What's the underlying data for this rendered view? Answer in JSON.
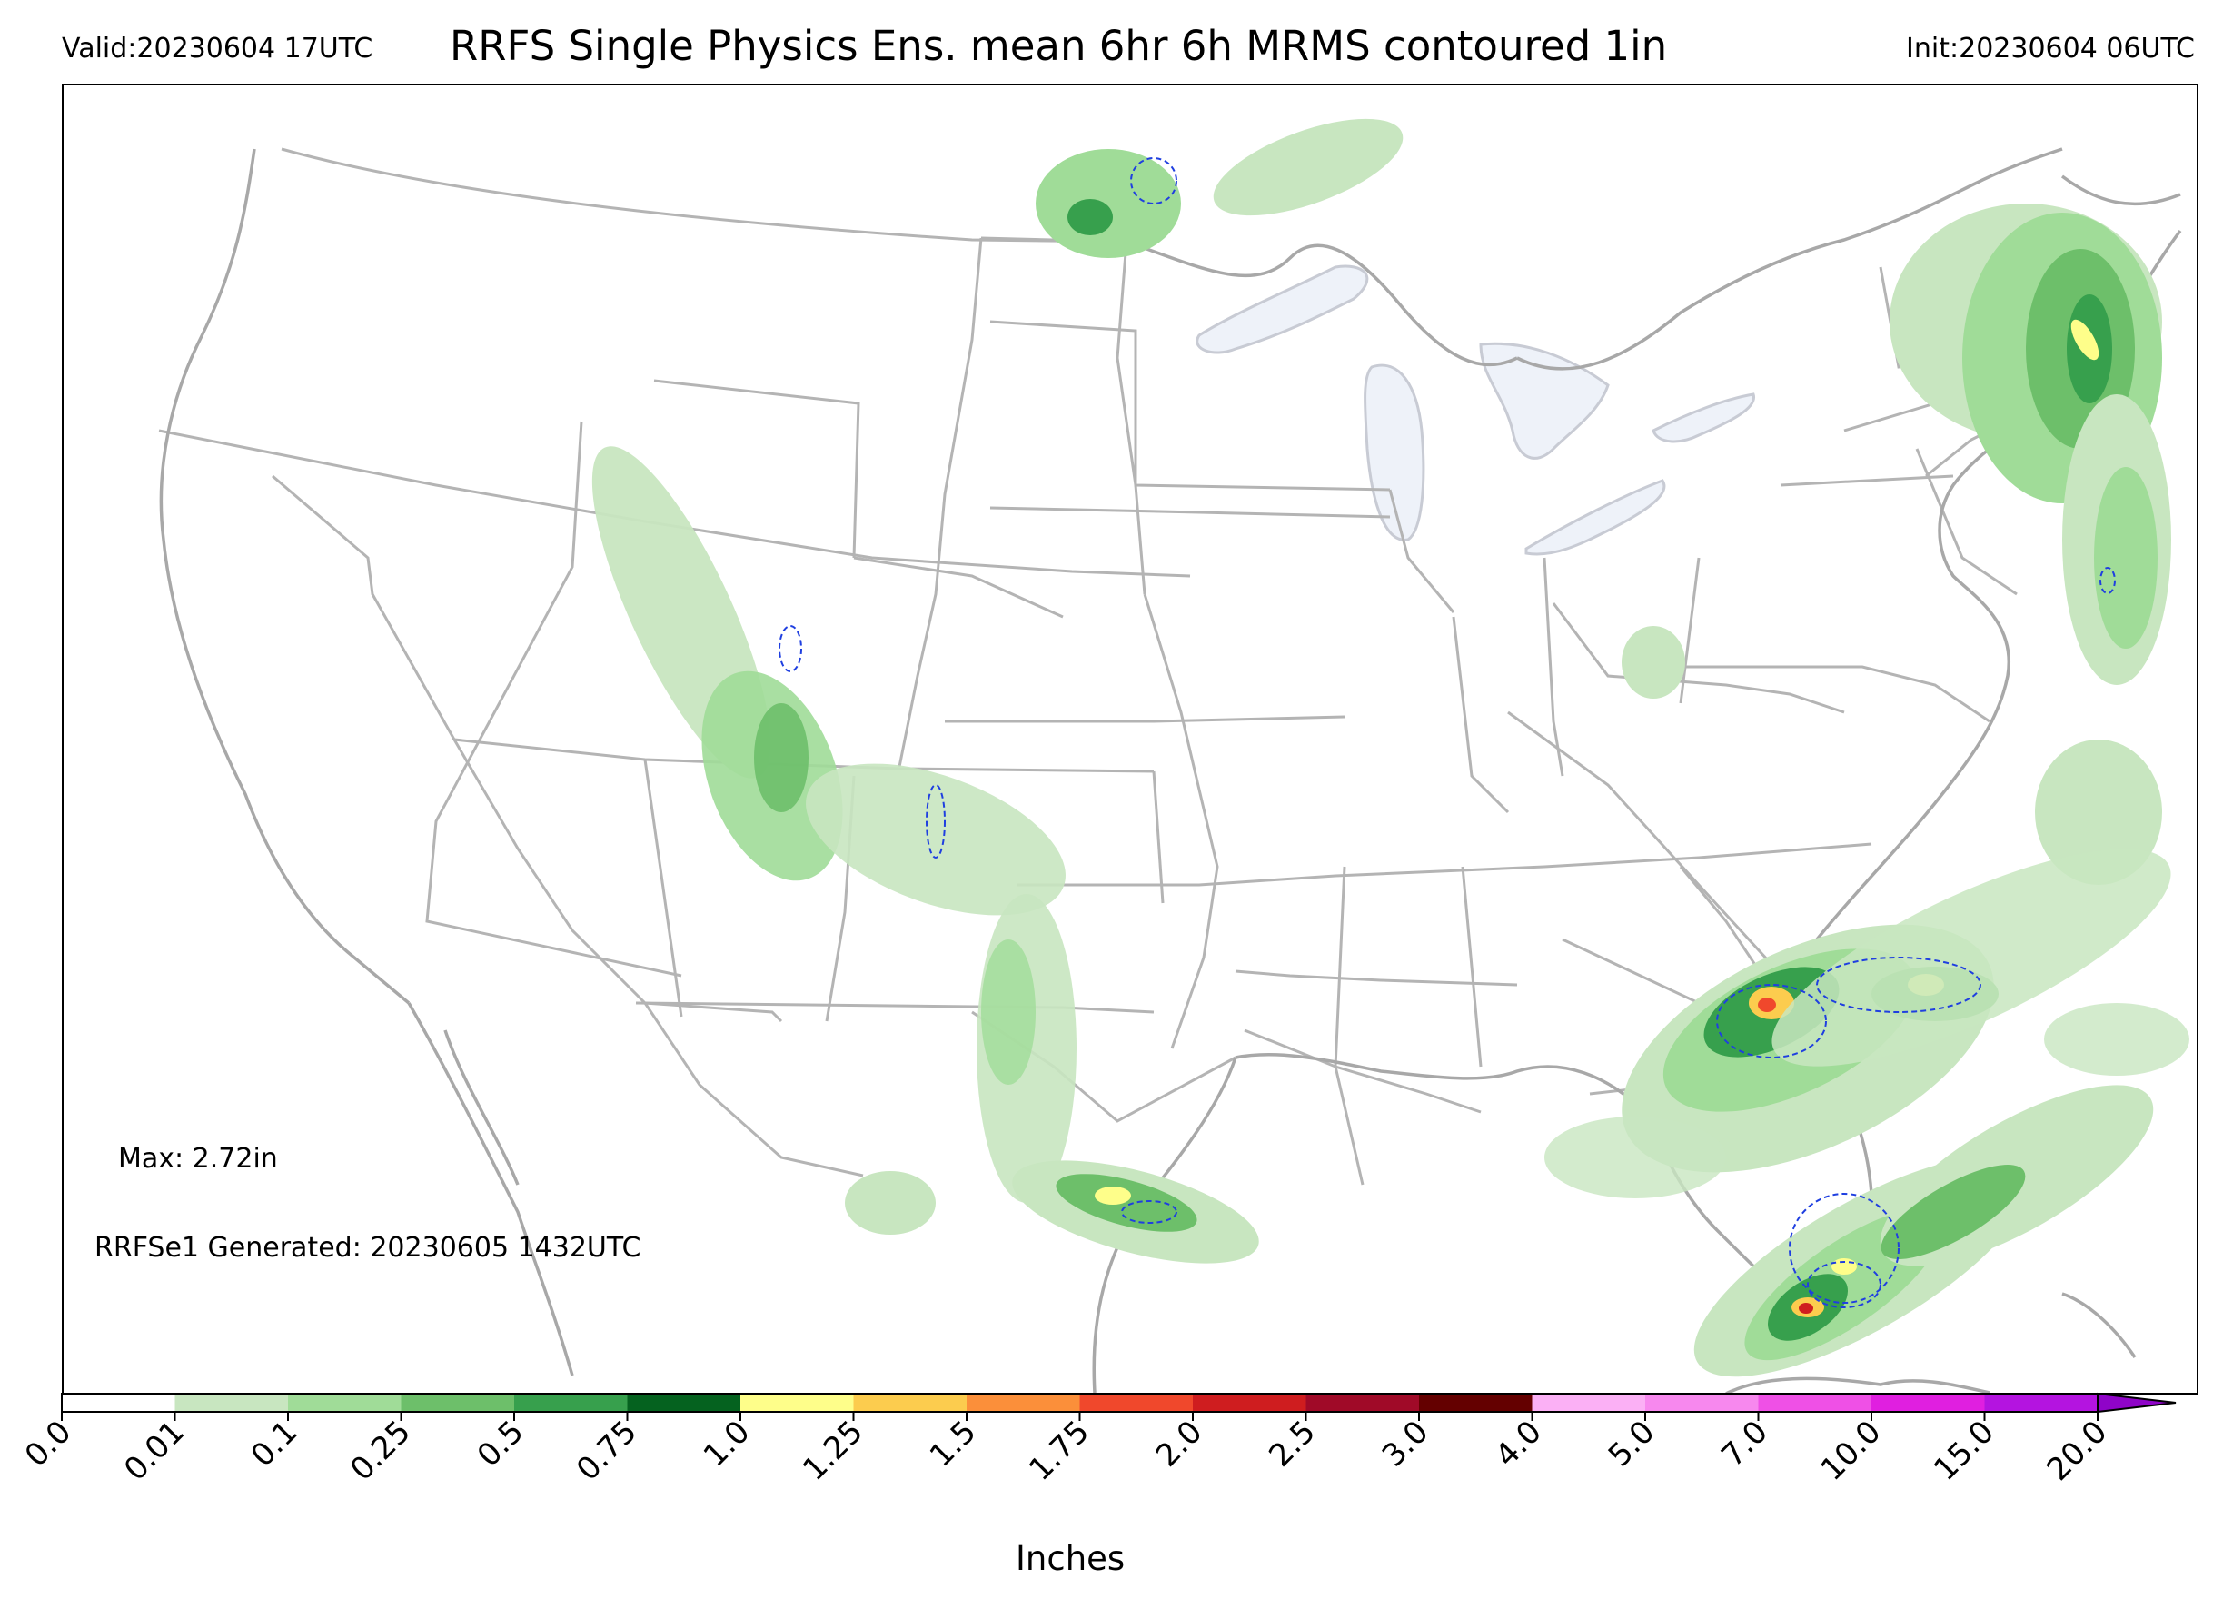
{
  "header": {
    "valid": "Valid:20230604 17UTC",
    "title": "RRFS Single Physics Ens. mean 6hr 6h MRMS contoured 1in",
    "init": "Init:20230604 06UTC"
  },
  "annotations": {
    "max": "Max: 2.72in",
    "generated": "RRFSe1 Generated: 20230605 1432UTC"
  },
  "colorbar": {
    "label": "Inches",
    "ticks": [
      "0.0",
      "0.01",
      "0.1",
      "0.25",
      "0.5",
      "0.75",
      "1.0",
      "1.25",
      "1.5",
      "1.75",
      "2.0",
      "2.5",
      "3.0",
      "4.0",
      "5.0",
      "7.0",
      "10.0",
      "15.0",
      "20.0"
    ],
    "colors": [
      "#ffffff",
      "#c8e6c0",
      "#a0dc98",
      "#6dbf6a",
      "#37a04d",
      "#05621f",
      "#fefe8a",
      "#fccc4e",
      "#fb8f3a",
      "#f0482c",
      "#cf1d1f",
      "#a00a28",
      "#640000",
      "#fbb0f5",
      "#f788ee",
      "#ef50e6",
      "#e01fe0",
      "#b414e0",
      "#8f04c8"
    ]
  },
  "map": {
    "land_border_color": "#b4b4b4",
    "lake_fill_color": "#eef2f9",
    "contour_color": "#1f3fe0"
  }
}
